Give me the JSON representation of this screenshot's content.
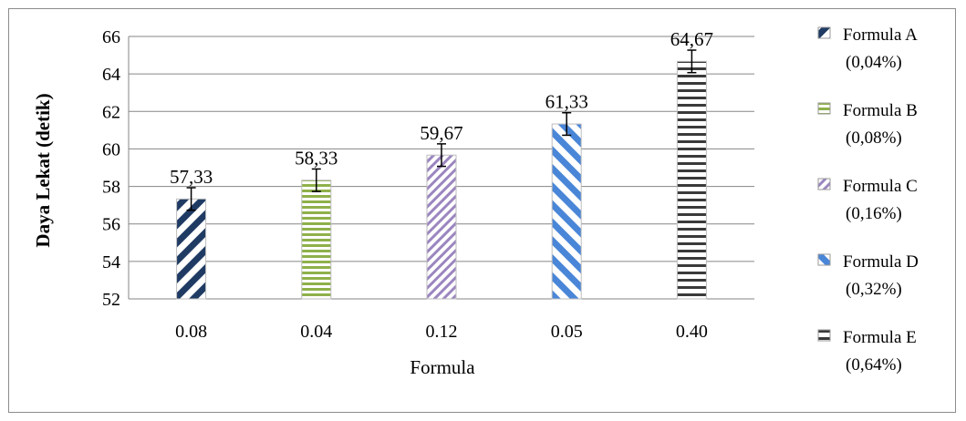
{
  "chart_data": {
    "type": "bar",
    "categories": [
      "0.08",
      "0.04",
      "0.12",
      "0.05",
      "0.40"
    ],
    "values": [
      57.33,
      58.33,
      59.67,
      61.33,
      64.67
    ],
    "value_labels": [
      "57,33",
      "58,33",
      "59,67",
      "61,33",
      "64,67"
    ],
    "error": [
      0.6,
      0.6,
      0.6,
      0.6,
      0.6
    ],
    "xlabel": "Formula",
    "ylabel": "Daya Lekat (detik)",
    "ylim": [
      52,
      66
    ],
    "yticks": [
      52,
      54,
      56,
      58,
      60,
      62,
      64,
      66
    ],
    "grid": true,
    "legend_position": "right",
    "legend": [
      {
        "name": "Formula A",
        "sub": "(0,04%)",
        "color": "#1f3b64",
        "pattern": "diag-down"
      },
      {
        "name": "Formula B",
        "sub": "(0,08%)",
        "color": "#8fb04a",
        "pattern": "horizontal"
      },
      {
        "name": "Formula C",
        "sub": "(0,16%)",
        "color": "#9b86c0",
        "pattern": "diag-down-thin"
      },
      {
        "name": "Formula D",
        "sub": "(0,32%)",
        "color": "#4a86d8",
        "pattern": "diag-up"
      },
      {
        "name": "Formula E",
        "sub": "(0,64%)",
        "color": "#3a3a3a",
        "pattern": "horizontal-dark"
      }
    ]
  }
}
